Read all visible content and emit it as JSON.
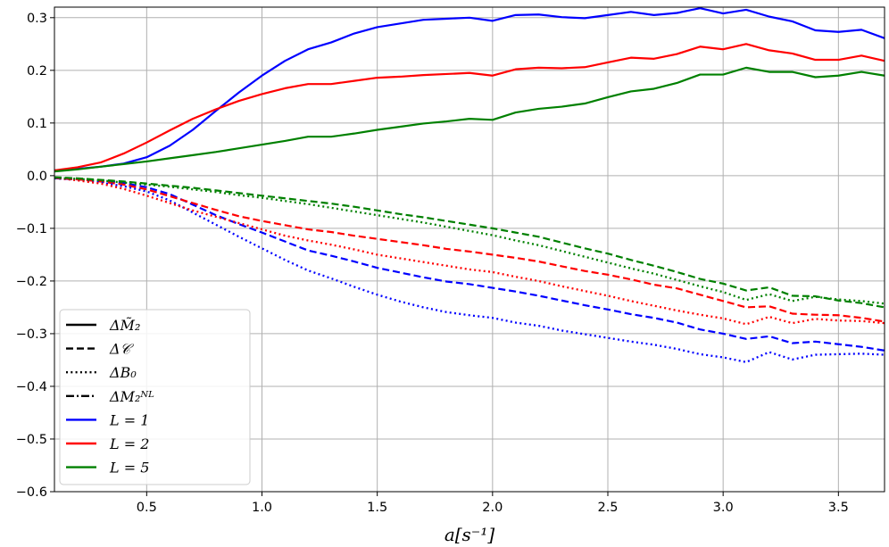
{
  "chart_data": {
    "type": "line",
    "xlabel": "a[s⁻¹]",
    "ylabel": "",
    "xlim": [
      0.1,
      3.7
    ],
    "ylim": [
      -0.6,
      0.32
    ],
    "xticks": [
      "0.5",
      "1.0",
      "1.5",
      "2.0",
      "2.5",
      "3.0",
      "3.5"
    ],
    "yticks": [
      "0.3",
      "0.2",
      "0.1",
      "0.0",
      "−0.1",
      "−0.2",
      "−0.3",
      "−0.4",
      "−0.5",
      "−0.6"
    ],
    "grid": true,
    "legend_position": "lower-left",
    "legend": [
      {
        "label": "ΔM̃₂",
        "style": "solid",
        "color": "#000000"
      },
      {
        "label": "Δ𝒞",
        "style": "dashed",
        "color": "#000000"
      },
      {
        "label": "ΔB₀",
        "style": "dotted",
        "color": "#000000"
      },
      {
        "label": "ΔM₂ᴺᴸ",
        "style": "dashdot",
        "color": "#000000"
      },
      {
        "label": "L = 1",
        "style": "solid",
        "color": "#0000ff"
      },
      {
        "label": "L = 2",
        "style": "solid",
        "color": "#ff0000"
      },
      {
        "label": "L = 5",
        "style": "solid",
        "color": "#008000"
      }
    ],
    "x": [
      0.1,
      0.2,
      0.3,
      0.4,
      0.5,
      0.6,
      0.7,
      0.8,
      0.9,
      1.0,
      1.1,
      1.2,
      1.3,
      1.4,
      1.5,
      1.6,
      1.7,
      1.8,
      1.9,
      2.0,
      2.1,
      2.2,
      2.3,
      2.4,
      2.5,
      2.6,
      2.7,
      2.8,
      2.9,
      3.0,
      3.1,
      3.2,
      3.3,
      3.4,
      3.5,
      3.6,
      3.7
    ],
    "series": [
      {
        "quantity": "ΔM̃₂",
        "L": 1,
        "color": "#0000ff",
        "style": "solid",
        "values": [
          0.01,
          0.013,
          0.017,
          0.023,
          0.035,
          0.057,
          0.087,
          0.123,
          0.158,
          0.19,
          0.218,
          0.24,
          0.253,
          0.27,
          0.282,
          0.289,
          0.296,
          0.298,
          0.3,
          0.294,
          0.305,
          0.306,
          0.301,
          0.299,
          0.305,
          0.311,
          0.305,
          0.309,
          0.318,
          0.308,
          0.315,
          0.302,
          0.293,
          0.276,
          0.273,
          0.277,
          0.261
        ]
      },
      {
        "quantity": "ΔM̃₂",
        "L": 2,
        "color": "#ff0000",
        "style": "solid",
        "values": [
          0.01,
          0.016,
          0.025,
          0.042,
          0.063,
          0.086,
          0.108,
          0.126,
          0.142,
          0.155,
          0.166,
          0.174,
          0.174,
          0.18,
          0.186,
          0.188,
          0.191,
          0.193,
          0.195,
          0.19,
          0.202,
          0.205,
          0.204,
          0.206,
          0.215,
          0.224,
          0.222,
          0.231,
          0.245,
          0.24,
          0.25,
          0.238,
          0.232,
          0.22,
          0.22,
          0.228,
          0.218
        ]
      },
      {
        "quantity": "ΔM̃₂",
        "L": 5,
        "color": "#008000",
        "style": "solid",
        "values": [
          0.008,
          0.012,
          0.017,
          0.022,
          0.027,
          0.033,
          0.039,
          0.045,
          0.052,
          0.059,
          0.066,
          0.074,
          0.074,
          0.08,
          0.087,
          0.093,
          0.099,
          0.103,
          0.108,
          0.106,
          0.12,
          0.127,
          0.131,
          0.137,
          0.149,
          0.16,
          0.165,
          0.176,
          0.192,
          0.192,
          0.205,
          0.197,
          0.197,
          0.187,
          0.19,
          0.197,
          0.19
        ]
      },
      {
        "quantity": "Δ𝒞",
        "L": 1,
        "color": "#0000ff",
        "style": "dashed",
        "values": [
          -0.005,
          -0.007,
          -0.01,
          -0.014,
          -0.022,
          -0.035,
          -0.055,
          -0.075,
          -0.092,
          -0.108,
          -0.125,
          -0.142,
          -0.152,
          -0.163,
          -0.175,
          -0.184,
          -0.193,
          -0.201,
          -0.206,
          -0.213,
          -0.22,
          -0.228,
          -0.237,
          -0.246,
          -0.254,
          -0.263,
          -0.27,
          -0.279,
          -0.292,
          -0.3,
          -0.31,
          -0.305,
          -0.318,
          -0.315,
          -0.32,
          -0.325,
          -0.332
        ]
      },
      {
        "quantity": "Δ𝒞",
        "L": 2,
        "color": "#ff0000",
        "style": "dashed",
        "values": [
          -0.004,
          -0.007,
          -0.011,
          -0.017,
          -0.026,
          -0.039,
          -0.052,
          -0.065,
          -0.077,
          -0.086,
          -0.094,
          -0.102,
          -0.107,
          -0.114,
          -0.12,
          -0.126,
          -0.132,
          -0.139,
          -0.144,
          -0.15,
          -0.156,
          -0.163,
          -0.172,
          -0.181,
          -0.188,
          -0.197,
          -0.207,
          -0.214,
          -0.226,
          -0.238,
          -0.25,
          -0.248,
          -0.262,
          -0.264,
          -0.265,
          -0.27,
          -0.277
        ]
      },
      {
        "quantity": "Δ𝒞",
        "L": 5,
        "color": "#008000",
        "style": "dashed",
        "values": [
          -0.003,
          -0.005,
          -0.008,
          -0.011,
          -0.015,
          -0.019,
          -0.023,
          -0.028,
          -0.033,
          -0.038,
          -0.043,
          -0.048,
          -0.053,
          -0.059,
          -0.066,
          -0.073,
          -0.079,
          -0.086,
          -0.093,
          -0.1,
          -0.108,
          -0.116,
          -0.127,
          -0.138,
          -0.148,
          -0.16,
          -0.171,
          -0.183,
          -0.196,
          -0.205,
          -0.218,
          -0.212,
          -0.228,
          -0.229,
          -0.237,
          -0.242,
          -0.25
        ]
      },
      {
        "quantity": "ΔB₀",
        "L": 1,
        "color": "#0000ff",
        "style": "dotted",
        "values": [
          -0.005,
          -0.008,
          -0.013,
          -0.02,
          -0.03,
          -0.047,
          -0.07,
          -0.093,
          -0.116,
          -0.138,
          -0.16,
          -0.18,
          -0.195,
          -0.211,
          -0.226,
          -0.239,
          -0.25,
          -0.259,
          -0.265,
          -0.27,
          -0.279,
          -0.285,
          -0.294,
          -0.301,
          -0.308,
          -0.315,
          -0.321,
          -0.329,
          -0.339,
          -0.345,
          -0.354,
          -0.335,
          -0.349,
          -0.34,
          -0.339,
          -0.338,
          -0.34
        ]
      },
      {
        "quantity": "ΔB₀",
        "L": 2,
        "color": "#ff0000",
        "style": "dotted",
        "values": [
          -0.004,
          -0.009,
          -0.015,
          -0.025,
          -0.038,
          -0.052,
          -0.066,
          -0.078,
          -0.09,
          -0.102,
          -0.114,
          -0.123,
          -0.131,
          -0.14,
          -0.15,
          -0.157,
          -0.164,
          -0.171,
          -0.178,
          -0.183,
          -0.192,
          -0.2,
          -0.21,
          -0.219,
          -0.228,
          -0.238,
          -0.247,
          -0.256,
          -0.264,
          -0.271,
          -0.282,
          -0.268,
          -0.28,
          -0.272,
          -0.275,
          -0.276,
          -0.28
        ]
      },
      {
        "quantity": "ΔB₀",
        "L": 5,
        "color": "#008000",
        "style": "dotted",
        "values": [
          -0.004,
          -0.006,
          -0.009,
          -0.013,
          -0.017,
          -0.021,
          -0.026,
          -0.031,
          -0.037,
          -0.042,
          -0.048,
          -0.054,
          -0.061,
          -0.068,
          -0.075,
          -0.082,
          -0.089,
          -0.097,
          -0.105,
          -0.113,
          -0.123,
          -0.132,
          -0.143,
          -0.154,
          -0.165,
          -0.176,
          -0.186,
          -0.198,
          -0.21,
          -0.221,
          -0.236,
          -0.225,
          -0.238,
          -0.23,
          -0.235,
          -0.238,
          -0.243
        ]
      }
    ]
  }
}
